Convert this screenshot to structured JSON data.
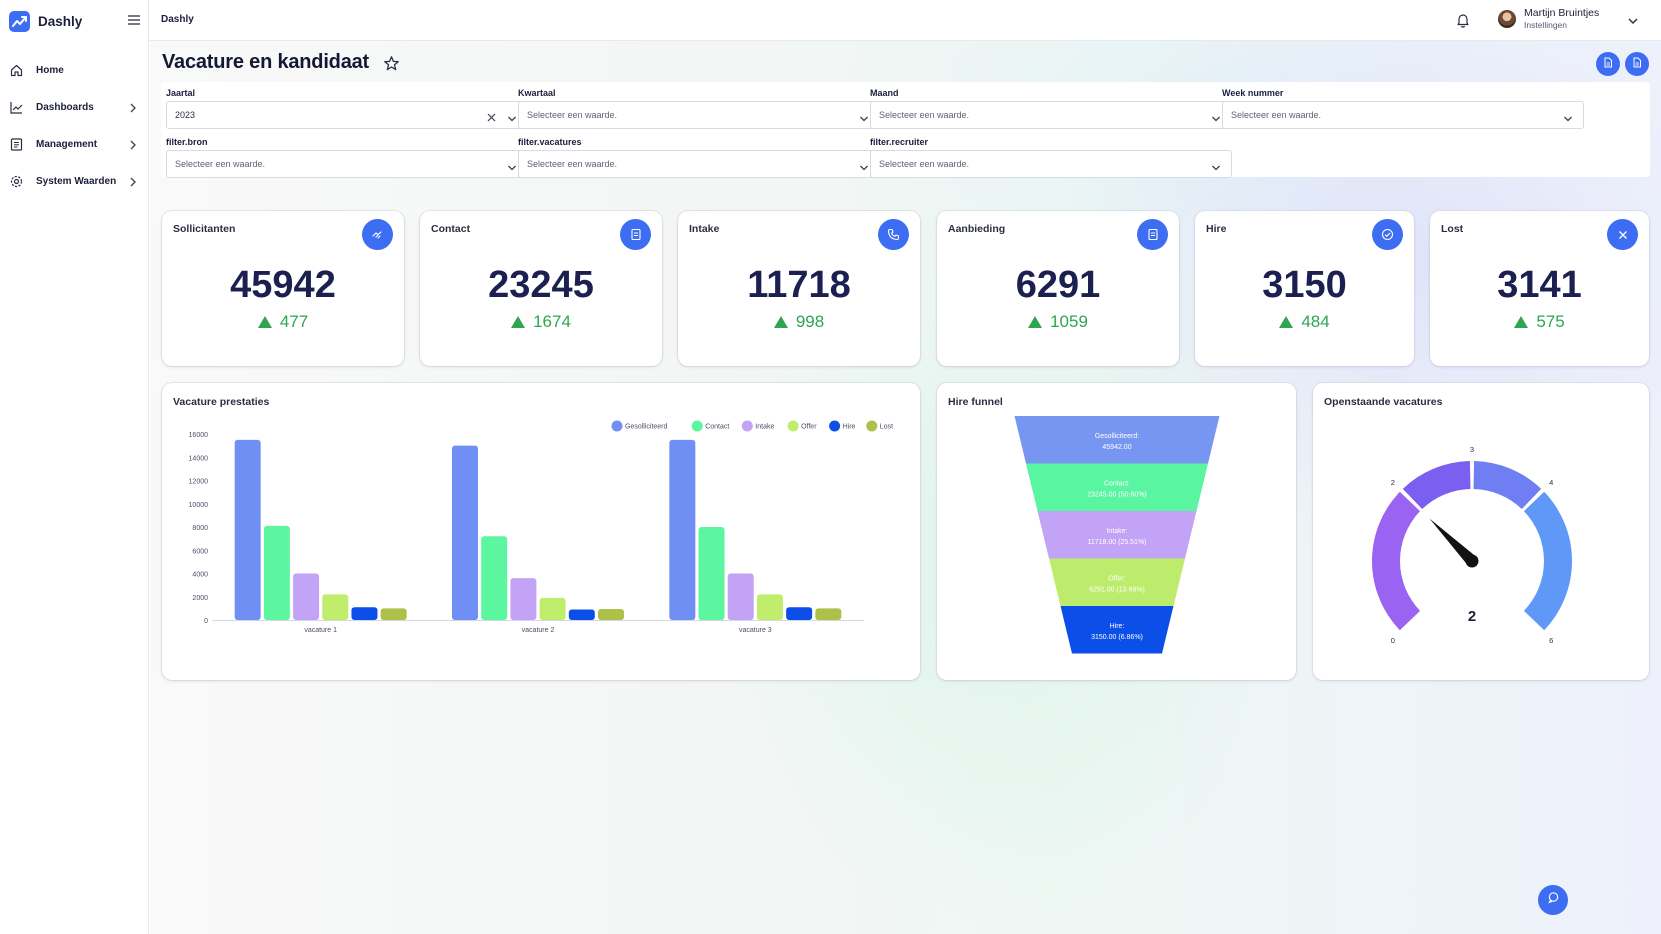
{
  "app": {
    "name": "Dashly",
    "colors": {
      "accent": "#3d6df2",
      "positive": "#2fa551",
      "heading": "#1b2050"
    }
  },
  "sidebar": {
    "items": [
      {
        "label": "Home",
        "icon": "home-icon",
        "has_children": false
      },
      {
        "label": "Dashboards",
        "icon": "chart-line-icon",
        "has_children": true
      },
      {
        "label": "Management",
        "icon": "document-icon",
        "has_children": true
      },
      {
        "label": "System Waarden",
        "icon": "gear-icon",
        "has_children": true
      }
    ]
  },
  "topbar": {
    "title": "Dashly",
    "user": {
      "name": "Martijn Bruintjes",
      "subtitle": "Instellingen"
    }
  },
  "page": {
    "title": "Vacature en kandidaat"
  },
  "filters": [
    {
      "label": "Jaartal",
      "value": "2023",
      "placeholder": "Selecteer een waarde.",
      "clearable": true
    },
    {
      "label": "Kwartaal",
      "value": "",
      "placeholder": "Selecteer een waarde."
    },
    {
      "label": "Maand",
      "value": "",
      "placeholder": "Selecteer een waarde."
    },
    {
      "label": "Week nummer",
      "value": "",
      "placeholder": "Selecteer een waarde."
    },
    {
      "label": "filter.bron",
      "value": "",
      "placeholder": "Selecteer een waarde."
    },
    {
      "label": "filter.vacatures",
      "value": "",
      "placeholder": "Selecteer een waarde."
    },
    {
      "label": "filter.recruiter",
      "value": "",
      "placeholder": "Selecteer een waarde."
    }
  ],
  "kpis": [
    {
      "title": "Sollicitanten",
      "value": "45942",
      "delta": "477",
      "icon": "handshake-icon"
    },
    {
      "title": "Contact",
      "value": "23245",
      "delta": "1674",
      "icon": "document-icon"
    },
    {
      "title": "Intake",
      "value": "11718",
      "delta": "998",
      "icon": "phone-icon"
    },
    {
      "title": "Aanbieding",
      "value": "6291",
      "delta": "1059",
      "icon": "document-icon"
    },
    {
      "title": "Hire",
      "value": "3150",
      "delta": "484",
      "icon": "check-circle-icon"
    },
    {
      "title": "Lost",
      "value": "3141",
      "delta": "575",
      "icon": "close-icon"
    }
  ],
  "panels": {
    "bar_title": "Vacature prestaties",
    "funnel_title": "Hire funnel",
    "gauge_title": "Openstaande vacatures"
  },
  "chart_data": [
    {
      "type": "bar",
      "title": "Vacature prestaties",
      "categories": [
        "vacature 1",
        "vacature 2",
        "vacature 3"
      ],
      "ylim": [
        0,
        16000
      ],
      "yticks": [
        "0",
        "2000",
        "4000",
        "6000",
        "8000",
        "10000",
        "12000",
        "14000",
        "16000"
      ],
      "legend_position": "top-right",
      "series": [
        {
          "name": "Gesolliciteerd",
          "color": "#6f8ff5",
          "values": [
            15500,
            15000,
            15500
          ]
        },
        {
          "name": "Contact",
          "color": "#5cf5a0",
          "values": [
            8100,
            7200,
            8000
          ]
        },
        {
          "name": "Intake",
          "color": "#c3a3f5",
          "values": [
            4000,
            3600,
            4000
          ]
        },
        {
          "name": "Offer",
          "color": "#c0ee6c",
          "values": [
            2200,
            1900,
            2200
          ]
        },
        {
          "name": "Hire",
          "color": "#0c4ee8",
          "values": [
            1100,
            900,
            1100
          ]
        },
        {
          "name": "Lost",
          "color": "#adc14a",
          "values": [
            1000,
            950,
            1000
          ]
        }
      ]
    },
    {
      "type": "funnel",
      "title": "Hire funnel",
      "stages": [
        {
          "name": "Gesolliciteerd",
          "label": "Gesolliciteerd:",
          "value_text": "45942.00",
          "value": 45942,
          "color": "#7796f2"
        },
        {
          "name": "Contact",
          "label": "Contact:",
          "value_text": "23245.00 (50.60%)",
          "value": 23245,
          "color": "#5af5a0"
        },
        {
          "name": "Intake",
          "label": "Intake:",
          "value_text": "11718.00 (25.51%)",
          "value": 11718,
          "color": "#c3a3f5"
        },
        {
          "name": "Offer",
          "label": "Offer:",
          "value_text": "6291.00 (13.69%)",
          "value": 6291,
          "color": "#bdec6c"
        },
        {
          "name": "Hire",
          "label": "Hire:",
          "value_text": "3150.00 (6.86%)",
          "value": 3150,
          "color": "#0c4ee8"
        }
      ]
    },
    {
      "type": "gauge",
      "title": "Openstaande vacatures",
      "min": 0,
      "max": 6,
      "value": 2,
      "value_label": "2",
      "ticks": [
        "0",
        "2",
        "3",
        "4",
        "6"
      ]
    }
  ]
}
